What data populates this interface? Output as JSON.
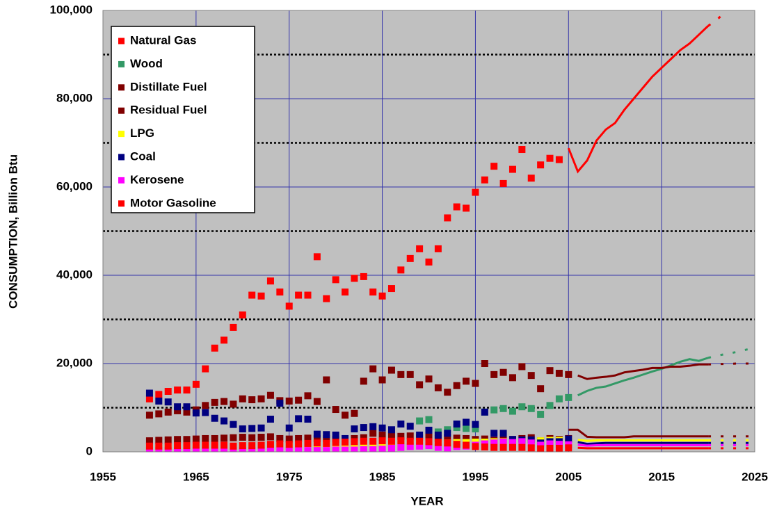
{
  "chart_data": {
    "type": "scatter",
    "xlabel": "YEAR",
    "ylabel": "CONSUMPTION, Billion Btu",
    "xlim": [
      1955,
      2025
    ],
    "xticks": [
      1955,
      1965,
      1975,
      1985,
      1995,
      2005,
      2015,
      2025
    ],
    "ylim": [
      0,
      100000
    ],
    "yticks": [
      0,
      {
        "value": 20000,
        "label": "20,000"
      },
      {
        "value": 40000,
        "label": "40,000"
      },
      {
        "value": 60000,
        "label": "60,000"
      },
      {
        "value": 80000,
        "label": "80,000"
      },
      {
        "value": 100000,
        "label": "100,000"
      }
    ],
    "yminor": [
      10000,
      30000,
      50000,
      70000,
      90000
    ],
    "grid": true,
    "legend": "upper left",
    "background": "#c0c0c0",
    "x": [
      1960,
      1961,
      1962,
      1963,
      1964,
      1965,
      1966,
      1967,
      1968,
      1969,
      1970,
      1971,
      1972,
      1973,
      1974,
      1975,
      1976,
      1977,
      1978,
      1979,
      1980,
      1981,
      1982,
      1983,
      1984,
      1985,
      1986,
      1987,
      1988,
      1989,
      1990,
      1991,
      1992,
      1993,
      1994,
      1995,
      1996,
      1997,
      1998,
      1999,
      2000,
      2001,
      2002,
      2003,
      2004,
      2005
    ],
    "projection_x": [
      2005,
      2006,
      2007,
      2008,
      2009,
      2010,
      2011,
      2012,
      2013,
      2014,
      2015,
      2016,
      2017,
      2018,
      2019,
      2020,
      2021,
      2022,
      2023,
      2024,
      2025
    ],
    "dashed_from": 2020,
    "series": [
      {
        "name": "Natural Gas",
        "color": "#ff0000",
        "values": [
          12000,
          13000,
          13700,
          14000,
          14000,
          15300,
          18800,
          23500,
          25300,
          28200,
          31000,
          35500,
          35300,
          38700,
          36200,
          33000,
          35500,
          35500,
          44200,
          34700,
          39000,
          36200,
          39300,
          39700,
          36200,
          35300,
          37000,
          41200,
          43800,
          46000,
          43000,
          46000,
          53000,
          55500,
          55200,
          58800,
          61600,
          64700,
          60800,
          64000,
          68500,
          62000,
          65000,
          66500,
          66200,
          null
        ],
        "projection": [
          68800,
          63500,
          66000,
          70500,
          73000,
          74500,
          77500,
          80000,
          82500,
          85000,
          87000,
          89000,
          91000,
          92500,
          94500,
          96500,
          98000,
          100000,
          null,
          null,
          null
        ]
      },
      {
        "name": "Wood",
        "color": "#339966",
        "values": [
          null,
          null,
          null,
          null,
          null,
          null,
          null,
          null,
          null,
          null,
          null,
          null,
          null,
          null,
          null,
          null,
          null,
          null,
          null,
          null,
          null,
          null,
          null,
          null,
          null,
          null,
          null,
          null,
          null,
          7000,
          7300,
          4500,
          5000,
          5500,
          5300,
          5200,
          9000,
          9500,
          9800,
          9200,
          10200,
          9800,
          8500,
          10500,
          12000,
          12300
        ],
        "projection": [
          null,
          12800,
          13800,
          14500,
          14800,
          15500,
          16200,
          16800,
          17500,
          18200,
          18800,
          19600,
          20400,
          21000,
          20600,
          21300,
          21800,
          22200,
          22600,
          23100,
          23600
        ]
      },
      {
        "name": "Distillate Fuel",
        "color": "#800000",
        "values": [
          8300,
          8600,
          9000,
          9300,
          9000,
          9500,
          10500,
          11200,
          11400,
          10800,
          12000,
          11800,
          12000,
          12800,
          11600,
          11500,
          11700,
          12700,
          11400,
          16300,
          9600,
          8300,
          8700,
          16000,
          18800,
          16300,
          18500,
          17500,
          17500,
          15200,
          16500,
          14500,
          13500,
          15000,
          16000,
          15500,
          20000,
          17500,
          18000,
          16800,
          19300,
          17300,
          14300,
          18400,
          17800,
          17500
        ],
        "projection": [
          null,
          17300,
          16500,
          16800,
          17000,
          17300,
          18000,
          18300,
          18600,
          19000,
          19000,
          19300,
          19300,
          19500,
          19800,
          19800,
          19900,
          19900,
          20000,
          20000,
          20000
        ]
      },
      {
        "name": "Residual Fuel",
        "color": "#800000",
        "values": [
          2500,
          2600,
          2700,
          2800,
          2800,
          2900,
          3000,
          3000,
          3100,
          3200,
          3300,
          3200,
          3300,
          3400,
          3000,
          2900,
          3000,
          3100,
          3000,
          3000,
          2800,
          2700,
          3000,
          3200,
          4200,
          3800,
          3800,
          3500,
          3600,
          3200,
          3400,
          3000,
          3300,
          3100,
          3000,
          2800,
          2900,
          2600,
          2700,
          2800,
          3000,
          3200,
          2500,
          3000,
          2800,
          3000
        ],
        "projection": [
          5000,
          5000,
          3400,
          3300,
          3300,
          3300,
          3300,
          3500,
          3500,
          3500,
          3500,
          3500,
          3500,
          3500,
          3500,
          3500,
          3500,
          3500,
          3500,
          3500,
          3500
        ]
      },
      {
        "name": "LPG",
        "color": "#ffff00",
        "values": [
          800,
          800,
          900,
          900,
          1000,
          1000,
          1000,
          1100,
          1100,
          1200,
          1200,
          1300,
          1300,
          1400,
          1300,
          1300,
          1400,
          1400,
          1400,
          1500,
          1500,
          1500,
          1600,
          1600,
          1700,
          1700,
          1700,
          1800,
          1800,
          1900,
          1900,
          2000,
          2000,
          2100,
          2100,
          2200,
          2200,
          2300,
          2300,
          2400,
          2400,
          2500,
          2500,
          2600,
          2600,
          2700
        ],
        "projection": [
          null,
          2700,
          2500,
          2600,
          2600,
          2600,
          2600,
          2600,
          2600,
          2600,
          2600,
          2600,
          2600,
          2600,
          2600,
          2600,
          2600,
          2600,
          2600,
          2600,
          2600
        ]
      },
      {
        "name": "Coal",
        "color": "#000080",
        "values": [
          13300,
          11500,
          11300,
          10200,
          10200,
          8800,
          8900,
          7600,
          7000,
          6200,
          5200,
          5300,
          5400,
          7400,
          11000,
          5400,
          7500,
          7400,
          4000,
          3900,
          3800,
          3000,
          5200,
          5500,
          5700,
          5400,
          5000,
          6300,
          5800,
          3800,
          4900,
          3800,
          4200,
          6300,
          6700,
          6200,
          9000,
          4200,
          4200,
          2800,
          2700,
          2700,
          2000,
          2300,
          2300,
          2900
        ],
        "projection": [
          null,
          2200,
          1800,
          1900,
          2000,
          2000,
          2000,
          2000,
          2000,
          2000,
          2000,
          2000,
          2000,
          2000,
          2000,
          2000,
          2000,
          2000,
          2000,
          2000,
          2000
        ]
      },
      {
        "name": "Kerosene",
        "color": "#ff00ff",
        "values": [
          300,
          300,
          300,
          300,
          300,
          300,
          300,
          300,
          300,
          300,
          300,
          300,
          300,
          300,
          300,
          300,
          300,
          300,
          300,
          300,
          400,
          400,
          400,
          500,
          500,
          600,
          800,
          1000,
          1200,
          1300,
          1400,
          1000,
          900,
          1200,
          1300,
          1500,
          1800,
          2000,
          2200,
          2100,
          2300,
          2000,
          1500,
          1800,
          1700,
          1600
        ],
        "projection": [
          null,
          1600,
          1400,
          1500,
          1500,
          1500,
          1500,
          1500,
          1500,
          1500,
          1500,
          1500,
          1500,
          1500,
          1500,
          1500,
          1500,
          1500,
          1500,
          1500,
          1500
        ]
      },
      {
        "name": "Motor Gasoline",
        "color": "#ff0000",
        "values": [
          1300,
          1300,
          1300,
          1400,
          1400,
          1500,
          1500,
          1500,
          1500,
          1300,
          1400,
          1400,
          1500,
          1700,
          1800,
          1700,
          1800,
          1900,
          2000,
          1900,
          2100,
          2200,
          2300,
          2400,
          2400,
          2500,
          2400,
          2500,
          2400,
          2400,
          2300,
          2100,
          2000,
          1700,
          1500,
          1200,
          1100,
          1000,
          1000,
          1000,
          1000,
          900,
          700,
          800,
          800,
          900
        ],
        "projection": [
          null,
          900,
          800,
          800,
          800,
          800,
          800,
          800,
          800,
          800,
          800,
          800,
          800,
          800,
          800,
          800,
          800,
          800,
          800,
          800,
          800
        ]
      }
    ]
  }
}
